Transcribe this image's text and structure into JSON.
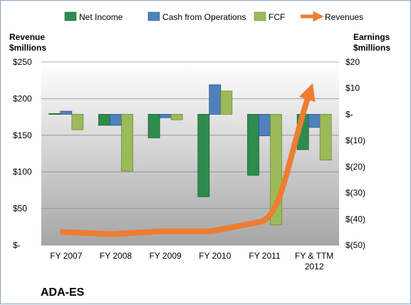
{
  "chart_data": {
    "type": "bar",
    "ticker": "ADA-ES",
    "categories": [
      "FY 2007",
      "FY 2008",
      "FY 2009",
      "FY 2010",
      "FY 2011",
      "FY & TTM 2012"
    ],
    "left_axis": {
      "title": [
        "Revenue",
        "$millions"
      ],
      "ylim": [
        0,
        250
      ],
      "ticks": [
        0,
        50,
        100,
        150,
        200,
        250
      ],
      "tick_labels": [
        "$-",
        "$50",
        "$100",
        "$150",
        "$200",
        "$250"
      ]
    },
    "right_axis": {
      "title": [
        "Earnings",
        "$millions"
      ],
      "ylim": [
        -50,
        20
      ],
      "ticks": [
        -50,
        -40,
        -30,
        -20,
        -10,
        0,
        10,
        20
      ],
      "tick_labels": [
        "$(50)",
        "$(40)",
        "$(30)",
        "$(20)",
        "$(10)",
        "$-",
        "$10",
        "$20"
      ]
    },
    "series": [
      {
        "name": "Net Income",
        "axis": "right",
        "type": "bar",
        "color": "#2e8b4e",
        "values": [
          0.3,
          -4.2,
          -9.0,
          -31.5,
          -23.3,
          -13.5
        ]
      },
      {
        "name": "Cash from Operations",
        "axis": "right",
        "type": "bar",
        "color": "#4f81bd",
        "values": [
          1.2,
          -4.2,
          -1.3,
          11.3,
          -8.2,
          -5.0
        ]
      },
      {
        "name": "FCF",
        "axis": "right",
        "type": "bar",
        "color": "#9bbb59",
        "values": [
          -5.9,
          -21.7,
          -2.1,
          8.9,
          -42.3,
          -17.5
        ]
      },
      {
        "name": "Revenues",
        "axis": "left",
        "type": "line",
        "color": "#ed7d31",
        "values": [
          18,
          15,
          19,
          19,
          32,
          210
        ]
      }
    ],
    "grid": true,
    "legend_position": "top"
  }
}
